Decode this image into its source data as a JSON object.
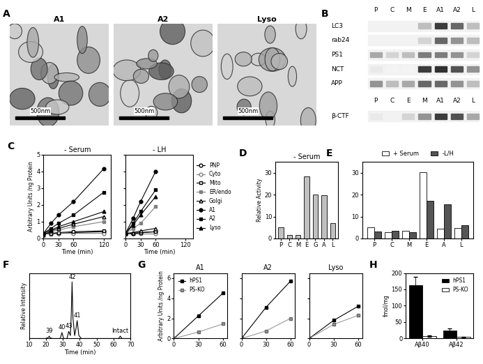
{
  "figure_panels": {
    "A": {
      "panel_label": "A",
      "images": [
        {
          "label": "A1",
          "scale_bar": "500nm"
        },
        {
          "label": "A2",
          "scale_bar": "500nm"
        },
        {
          "label": "Lyso",
          "scale_bar": "500nm"
        }
      ]
    },
    "B": {
      "panel_label": "B",
      "blot_top": {
        "lanes": [
          "P",
          "C",
          "M",
          "E",
          "A1",
          "A2",
          "L"
        ],
        "rows": [
          "LC3",
          "rab24",
          "PS1",
          "NCT",
          "APP"
        ]
      },
      "blot_bottom": {
        "lanes": [
          "P",
          "C",
          "E",
          "M",
          "A1",
          "A2",
          "L"
        ],
        "rows": [
          "β-CTF"
        ]
      }
    }
  },
  "chart_data": [
    {
      "panel_label": "C",
      "type": "line",
      "title": "- Serum",
      "x_label": "Time (min)",
      "y_label": "Arbitrary Units /ng Protein",
      "x": [
        0,
        15,
        30,
        60,
        120
      ],
      "series": [
        {
          "name": "PNP",
          "color": "#000000",
          "marker": "open_circle",
          "values": [
            0.25,
            0.3,
            0.3,
            0.35,
            0.4
          ]
        },
        {
          "name": "Cyto",
          "color": "#808080",
          "marker": "open_circle",
          "values": [
            0.3,
            0.25,
            0.3,
            0.3,
            0.3
          ]
        },
        {
          "name": "Mito",
          "color": "#000000",
          "marker": "open_square",
          "values": [
            0.3,
            0.3,
            0.35,
            0.4,
            0.45
          ]
        },
        {
          "name": "ER/endo",
          "color": "#808080",
          "marker": "square",
          "values": [
            0.25,
            0.4,
            0.5,
            0.7,
            1.0
          ]
        },
        {
          "name": "Golgi",
          "color": "#000000",
          "marker": "open_triangle",
          "values": [
            0.2,
            0.45,
            0.6,
            0.85,
            1.3
          ]
        },
        {
          "name": "A1",
          "color": "#000000",
          "marker": "circle",
          "values": [
            0.3,
            0.9,
            1.4,
            2.2,
            4.15
          ]
        },
        {
          "name": "A2",
          "color": "#000000",
          "marker": "square",
          "values": [
            0.3,
            0.6,
            0.9,
            1.4,
            2.75
          ]
        },
        {
          "name": "Lyso",
          "color": "#000000",
          "marker": "triangle",
          "values": [
            0.3,
            0.5,
            0.7,
            1.0,
            1.6
          ]
        }
      ],
      "xlim": [
        0,
        135
      ],
      "xticks": [
        0,
        30,
        60,
        120
      ],
      "ylim": [
        0,
        5
      ],
      "yticks": [
        0,
        1,
        2,
        3,
        4,
        5
      ]
    },
    {
      "type": "line",
      "title": "- LH",
      "x_label": "Time (min)",
      "x": [
        0,
        15,
        30,
        60
      ],
      "series": [
        {
          "name": "PNP",
          "color": "#000000",
          "marker": "open_circle",
          "values": [
            0.3,
            0.3,
            0.35,
            0.4
          ]
        },
        {
          "name": "Cyto",
          "color": "#808080",
          "marker": "open_circle",
          "values": [
            0.3,
            0.3,
            0.3,
            0.3
          ]
        },
        {
          "name": "Mito",
          "color": "#000000",
          "marker": "open_square",
          "values": [
            0.3,
            0.3,
            0.35,
            0.4
          ]
        },
        {
          "name": "ER/endo",
          "color": "#808080",
          "marker": "square",
          "values": [
            0.3,
            0.6,
            0.9,
            1.9
          ]
        },
        {
          "name": "Golgi",
          "color": "#000000",
          "marker": "open_triangle",
          "values": [
            0.3,
            0.35,
            0.45,
            0.6
          ]
        },
        {
          "name": "A1",
          "color": "#000000",
          "marker": "circle",
          "values": [
            0.3,
            1.2,
            2.2,
            4.0
          ]
        },
        {
          "name": "A2",
          "color": "#000000",
          "marker": "square",
          "values": [
            0.3,
            0.9,
            1.6,
            2.9
          ]
        },
        {
          "name": "Lyso",
          "color": "#000000",
          "marker": "triangle",
          "values": [
            0.3,
            0.8,
            1.4,
            2.5
          ]
        }
      ],
      "xlim": [
        0,
        135
      ],
      "xticks": [
        0,
        30,
        60,
        120
      ],
      "ylim": [
        0,
        5
      ],
      "yticks": [
        0,
        1,
        2,
        3,
        4,
        5
      ],
      "tick_labels": "x",
      "legend": "right"
    },
    {
      "panel_label": "D",
      "type": "bar",
      "title": "- Serum",
      "y_label": "Relative Activity",
      "categories": [
        "P",
        "C",
        "M",
        "E",
        "G",
        "A",
        "L"
      ],
      "values": [
        5,
        1.5,
        1.5,
        28.5,
        20,
        19.8,
        7
      ],
      "color": "#c0c0c0",
      "ylim": [
        0,
        35
      ],
      "yticks": [
        0,
        10,
        20,
        30
      ]
    },
    {
      "panel_label": "E",
      "type": "bar",
      "categories": [
        "P",
        "C",
        "M",
        "E",
        "A",
        "L"
      ],
      "series": [
        {
          "name": "+ Serum",
          "color": "#ffffff",
          "values": [
            5.2,
            2.8,
            3.5,
            30.2,
            4.5,
            4.8
          ]
        },
        {
          "name": "-L/H",
          "color": "#555555",
          "values": [
            3.2,
            3.5,
            3.0,
            17.2,
            15.7,
            6.0
          ]
        }
      ],
      "ylim": [
        0,
        35
      ],
      "yticks": [
        0,
        10,
        20,
        30
      ],
      "legend": "above"
    },
    {
      "panel_label": "F",
      "type": "line",
      "x_label": "Time (min)",
      "y_label": "Relative Intensity",
      "x": [
        10,
        20,
        21.5,
        22,
        22.5,
        24,
        28.5,
        29.5,
        30.5,
        32.5,
        33.5,
        34.5,
        35,
        35.5,
        36,
        37,
        38,
        38.5,
        39.5,
        41,
        60,
        63,
        64,
        65,
        70
      ],
      "series": [
        {
          "color": "#000000",
          "values": [
            0,
            0,
            0.02,
            0.04,
            0.01,
            0,
            0,
            0.1,
            0,
            0,
            0.12,
            0.05,
            0.4,
            0.95,
            0.35,
            0.05,
            0.2,
            0.3,
            0.05,
            0,
            0,
            0,
            0.04,
            0,
            0
          ]
        }
      ],
      "annotations": [
        {
          "text": "39",
          "x": 22,
          "y": 0.04
        },
        {
          "text": "40",
          "x": 29.5,
          "y": 0.1
        },
        {
          "text": "43",
          "x": 33.5,
          "y": 0.12
        },
        {
          "text": "42",
          "x": 35.5,
          "y": 0.95
        },
        {
          "text": "41",
          "x": 38.5,
          "y": 0.3
        },
        {
          "text": "Intact",
          "x": 64,
          "y": 0.04
        }
      ],
      "xlim": [
        10,
        70
      ],
      "xticks": [
        10,
        20,
        30,
        40,
        50,
        60,
        70
      ],
      "ylim": [
        0,
        1.1
      ],
      "tick_labels": "x"
    },
    {
      "panel_label": "G",
      "type": "line",
      "title": "A1",
      "y_label": "Arbitrary Units /ng Protein",
      "x": [
        0,
        30,
        60
      ],
      "series": [
        {
          "name": "hPS1",
          "color": "#000000",
          "marker": "square",
          "values": [
            0,
            2.25,
            4.5
          ]
        },
        {
          "name": "PS-KO",
          "color": "#999999",
          "marker": "square",
          "values": [
            0,
            0.65,
            1.45
          ]
        }
      ],
      "xlim": [
        0,
        65
      ],
      "xticks": [
        0,
        30,
        60
      ],
      "ylim": [
        0,
        6.5
      ],
      "yticks": [
        0,
        2,
        4,
        6
      ],
      "legend": "upper left"
    },
    {
      "type": "line",
      "title": "A2",
      "x": [
        0,
        30,
        60
      ],
      "series": [
        {
          "name": "hPS1",
          "color": "#000000",
          "marker": "square",
          "values": [
            0,
            3.1,
            5.7
          ]
        },
        {
          "name": "PS-KO",
          "color": "#999999",
          "marker": "square",
          "values": [
            0,
            0.75,
            2.0
          ]
        }
      ],
      "xlim": [
        0,
        65
      ],
      "xticks": [
        0,
        30,
        60
      ],
      "ylim": [
        0,
        6.5
      ],
      "yticks": [
        0,
        2,
        4,
        6
      ],
      "tick_labels": "x"
    },
    {
      "type": "line",
      "title": "Lyso",
      "x": [
        0,
        30,
        60
      ],
      "series": [
        {
          "name": "hPS1",
          "color": "#000000",
          "marker": "square",
          "values": [
            0,
            1.8,
            3.2
          ]
        },
        {
          "name": "PS-KO",
          "color": "#999999",
          "marker": "square",
          "values": [
            0,
            1.4,
            2.3
          ]
        }
      ],
      "xlim": [
        0,
        65
      ],
      "xticks": [
        0,
        30,
        60
      ],
      "ylim": [
        0,
        6.5
      ],
      "yticks": [
        0,
        2,
        4,
        6
      ],
      "tick_labels": "x"
    },
    {
      "panel_label": "H",
      "type": "bar",
      "y_label": "fmol/mg",
      "categories": [
        "Aβ40",
        "Aβ42"
      ],
      "series": [
        {
          "name": "hPS1",
          "color": "#000000",
          "values": [
            163,
            25
          ],
          "errors": [
            25,
            6
          ]
        },
        {
          "name": "PS-KO",
          "color": "#ffffff",
          "values": [
            8,
            5
          ],
          "errors": [
            2,
            1
          ]
        }
      ],
      "ylim": [
        0,
        200
      ],
      "yticks": [
        0,
        50,
        100,
        150,
        200
      ],
      "legend": "upper right"
    }
  ]
}
